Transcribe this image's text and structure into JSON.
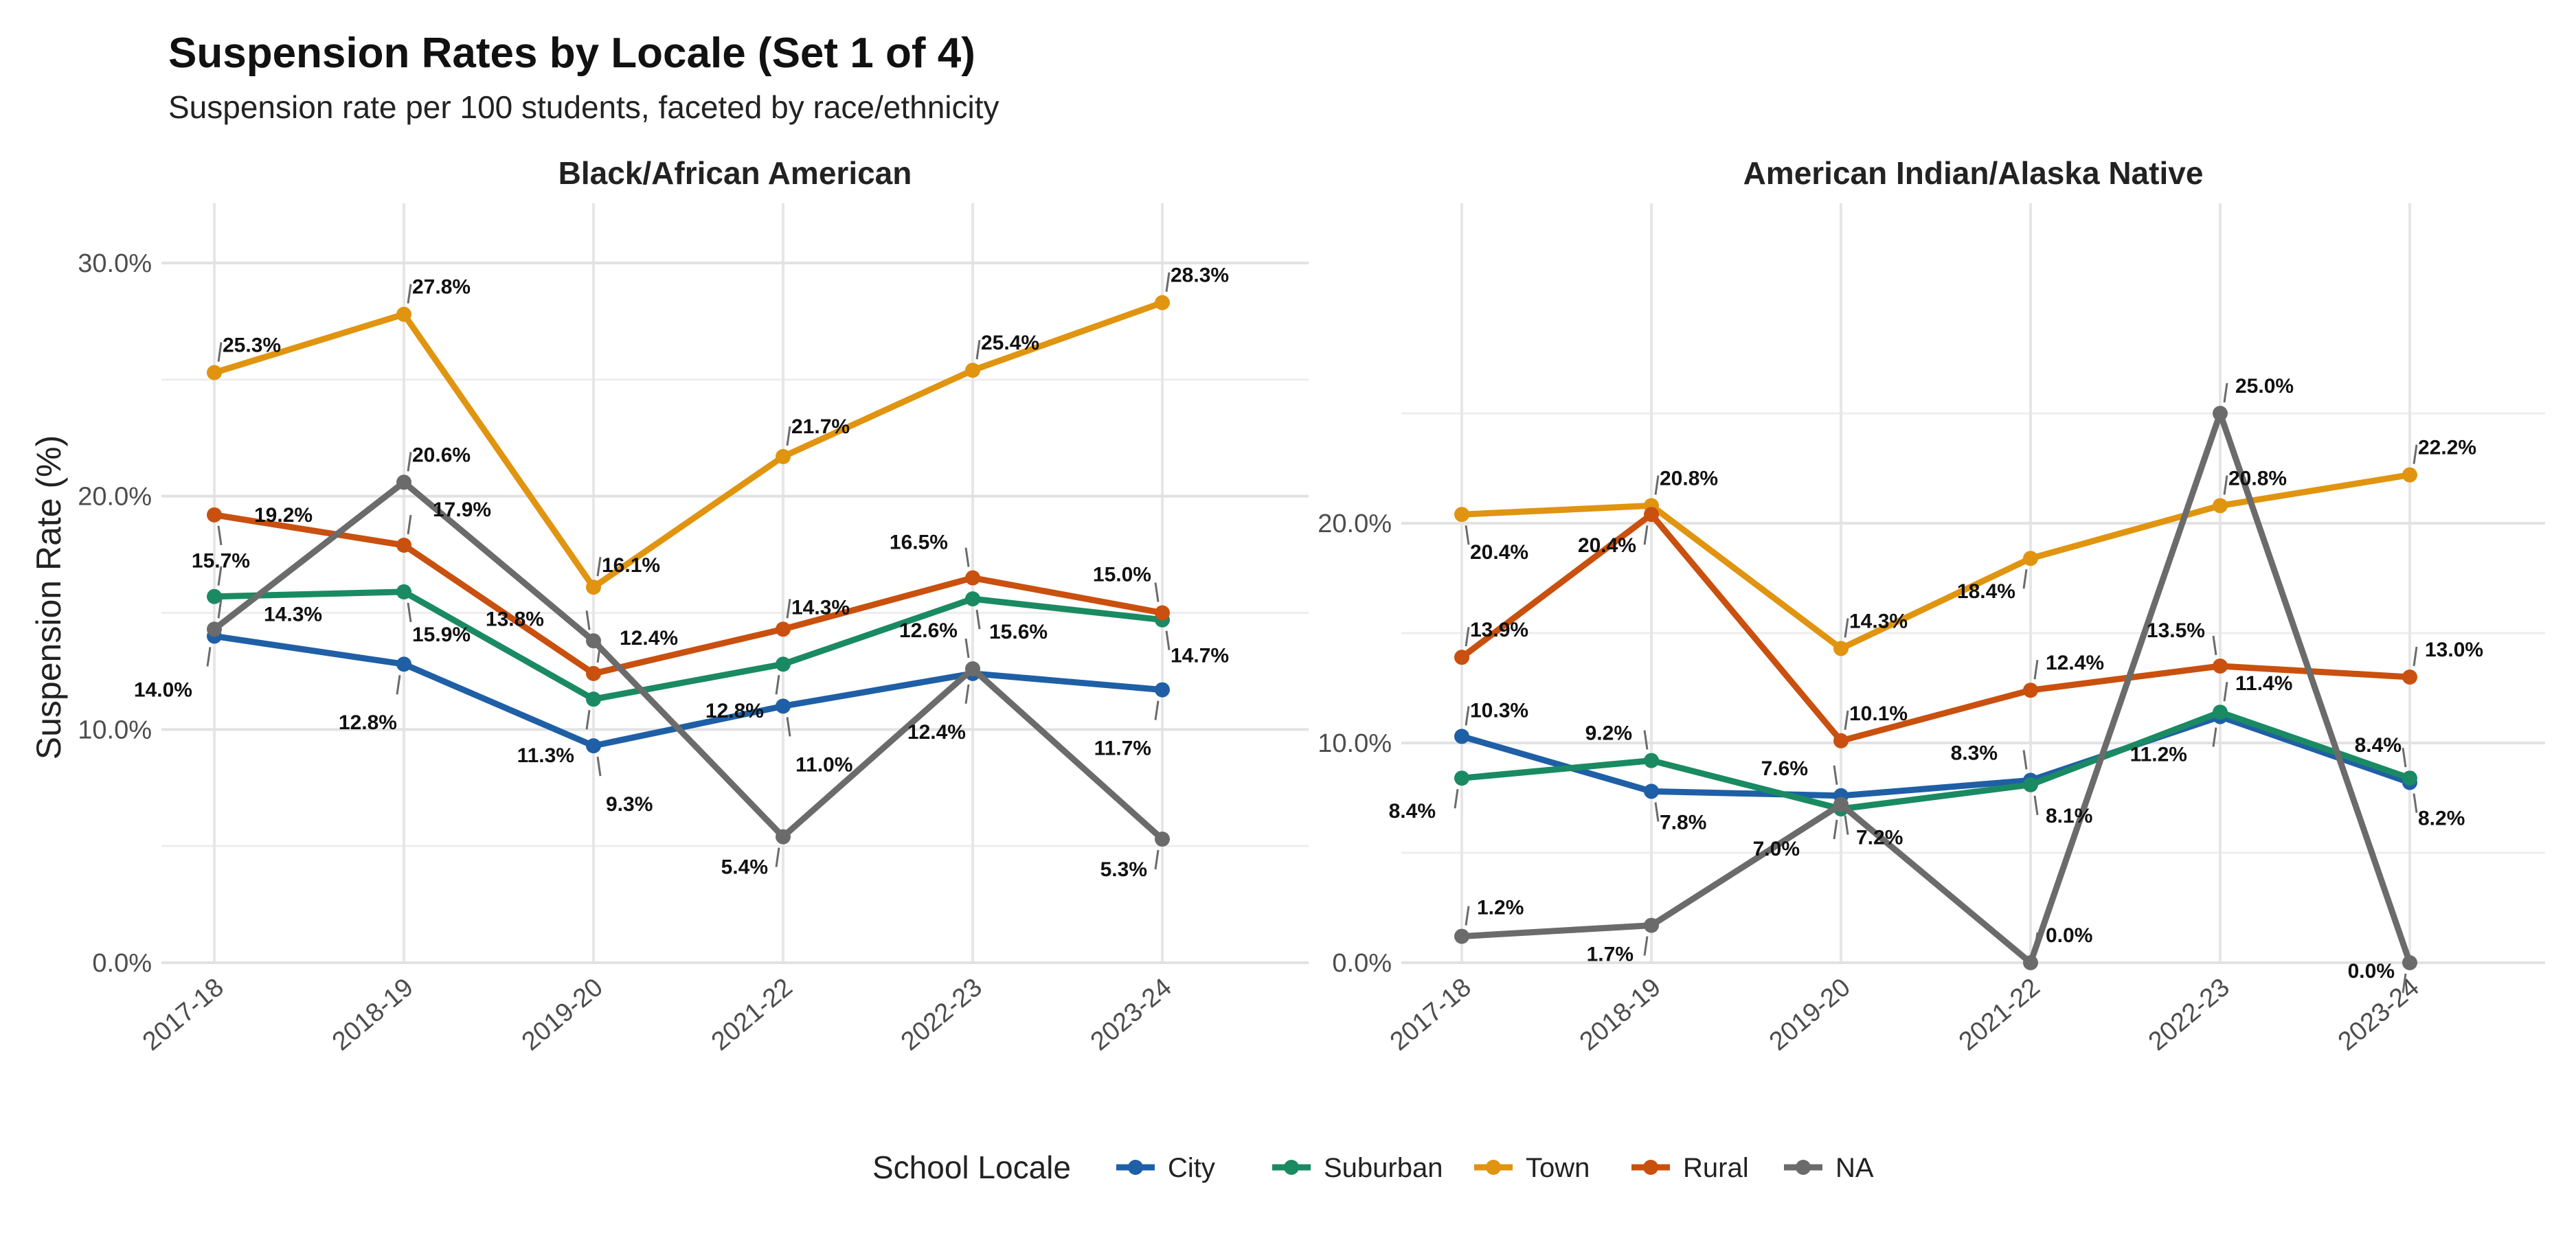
{
  "title": "Suspension Rates by Locale (Set 1 of 4)",
  "subtitle": "Suspension rate per 100 students, faceted by race/ethnicity",
  "ylabel": "Suspension Rate (%)",
  "legend": {
    "title": "School Locale",
    "items": [
      {
        "name": "City",
        "color": "#1f5fa6"
      },
      {
        "name": "Suburban",
        "color": "#1a8a63"
      },
      {
        "name": "Town",
        "color": "#e0940f"
      },
      {
        "name": "Rural",
        "color": "#c9500e"
      },
      {
        "name": "NA",
        "color": "#6b6b6b"
      }
    ]
  },
  "chart_data": [
    {
      "type": "line",
      "facet": "Black/African American",
      "x": [
        "2017-18",
        "2018-19",
        "2019-20",
        "2021-22",
        "2022-23",
        "2023-24"
      ],
      "yticks": [
        "0.0%",
        "10.0%",
        "20.0%",
        "30.0%"
      ],
      "yticks_values": [
        0,
        10,
        20,
        30
      ],
      "ylim": [
        0,
        30
      ],
      "grid": true,
      "series": [
        {
          "name": "City",
          "color": "#1f5fa6",
          "values": [
            14.0,
            12.8,
            9.3,
            11.0,
            12.4,
            11.7
          ],
          "labels": [
            "14.0%",
            "12.8%",
            "9.3%",
            "11.0%",
            "12.4%",
            "11.7%"
          ]
        },
        {
          "name": "Suburban",
          "color": "#1a8a63",
          "values": [
            15.7,
            15.9,
            11.3,
            12.8,
            15.6,
            14.7
          ],
          "labels": [
            "15.7%",
            "15.9%",
            "11.3%",
            "12.8%",
            "15.6%",
            "14.7%"
          ]
        },
        {
          "name": "Town",
          "color": "#e0940f",
          "values": [
            25.3,
            27.8,
            16.1,
            21.7,
            25.4,
            28.3
          ],
          "labels": [
            "25.3%",
            "27.8%",
            "16.1%",
            "21.7%",
            "25.4%",
            "28.3%"
          ]
        },
        {
          "name": "Rural",
          "color": "#c9500e",
          "values": [
            19.2,
            17.9,
            12.4,
            14.3,
            16.5,
            15.0
          ],
          "labels": [
            "19.2%",
            "17.9%",
            "12.4%",
            "14.3%",
            "16.5%",
            "15.0%"
          ]
        },
        {
          "name": "NA",
          "color": "#6b6b6b",
          "values": [
            14.3,
            20.6,
            13.8,
            5.4,
            12.6,
            5.3
          ],
          "labels": [
            "14.3%",
            "20.6%",
            "13.8%",
            "5.4%",
            "12.6%",
            "5.3%"
          ]
        }
      ]
    },
    {
      "type": "line",
      "facet": "American Indian/Alaska Native",
      "x": [
        "2017-18",
        "2018-19",
        "2019-20",
        "2021-22",
        "2022-23",
        "2023-24"
      ],
      "yticks": [
        "0.0%",
        "10.0%",
        "20.0%"
      ],
      "yticks_values": [
        0,
        10,
        20
      ],
      "ylim": [
        0,
        25
      ],
      "grid": true,
      "series": [
        {
          "name": "City",
          "color": "#1f5fa6",
          "values": [
            10.3,
            7.8,
            7.6,
            8.3,
            11.2,
            8.2
          ],
          "labels": [
            "10.3%",
            "7.8%",
            "7.6%",
            "8.3%",
            "11.2%",
            "8.2%"
          ]
        },
        {
          "name": "Suburban",
          "color": "#1a8a63",
          "values": [
            8.4,
            9.2,
            7.0,
            8.1,
            11.4,
            8.4
          ],
          "labels": [
            "8.4%",
            "9.2%",
            "7.0%",
            "8.1%",
            "11.4%",
            "8.4%"
          ]
        },
        {
          "name": "Town",
          "color": "#e0940f",
          "values": [
            20.4,
            20.8,
            14.3,
            18.4,
            20.8,
            22.2
          ],
          "labels": [
            "20.4%",
            "20.8%",
            "14.3%",
            "18.4%",
            "20.8%",
            "22.2%"
          ]
        },
        {
          "name": "Rural",
          "color": "#c9500e",
          "values": [
            13.9,
            20.4,
            10.1,
            12.4,
            13.5,
            13.0
          ],
          "labels": [
            "13.9%",
            "20.4%",
            "10.1%",
            "12.4%",
            "13.5%",
            "13.0%"
          ]
        },
        {
          "name": "NA",
          "color": "#6b6b6b",
          "values": [
            1.2,
            1.7,
            7.2,
            0.0,
            25.0,
            0.0
          ],
          "labels": [
            "1.2%",
            "1.7%",
            "7.2%",
            "0.0%",
            "25.0%",
            "0.0%"
          ]
        }
      ]
    }
  ]
}
